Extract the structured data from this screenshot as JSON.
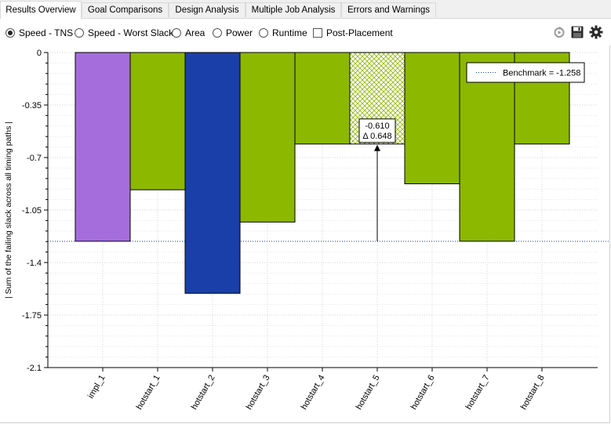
{
  "tabs": [
    {
      "label": "Results Overview",
      "active": true
    },
    {
      "label": "Goal Comparisons",
      "active": false
    },
    {
      "label": "Design Analysis",
      "active": false
    },
    {
      "label": "Multiple Job Analysis",
      "active": false
    },
    {
      "label": "Errors and Warnings",
      "active": false
    }
  ],
  "options": {
    "metrics": [
      {
        "label": "Speed - TNS",
        "selected": true
      },
      {
        "label": "Speed - Worst Slack",
        "selected": false
      },
      {
        "label": "Area",
        "selected": false
      },
      {
        "label": "Power",
        "selected": false
      },
      {
        "label": "Runtime",
        "selected": false
      }
    ],
    "post_placement": {
      "label": "Post-Placement",
      "checked": false
    }
  },
  "toolbar_icons": [
    "refresh-icon",
    "save-icon",
    "gear-icon"
  ],
  "chart_data": {
    "type": "bar",
    "ylabel": "| Sum of the failing slack across all timing paths |",
    "ylim": [
      -2.1,
      0
    ],
    "yticks": [
      0,
      -0.35,
      -0.7,
      -1.05,
      -1.4,
      -1.75,
      -2.1
    ],
    "ytick_labels": [
      "0",
      "-0.35",
      "-0.7",
      "-1.05",
      "-1.4",
      "-1.75",
      "-2.1"
    ],
    "categories": [
      "impl_1",
      "hotstart_1",
      "hotstart_2",
      "hotstart_3",
      "hotstart_4",
      "hotstart_5",
      "hotstart_6",
      "hotstart_7",
      "hotstart_8"
    ],
    "values": [
      -1.258,
      -0.915,
      -1.605,
      -1.13,
      -0.61,
      -0.61,
      -0.875,
      -1.258,
      -0.61
    ],
    "colors": [
      "#a56ddb",
      "#8cb800",
      "#1a3fa8",
      "#8cb800",
      "#8cb800",
      "hatched",
      "#8cb800",
      "#8cb800",
      "#8cb800"
    ],
    "benchmark": {
      "value": -1.258,
      "label": "Benchmark = -1.258",
      "color": "#1a3fa8"
    },
    "legend_position": "top-right",
    "annotation": {
      "category": "hotstart_5",
      "line1": "-0.610",
      "line2": "Δ 0.648"
    },
    "grid": true
  }
}
